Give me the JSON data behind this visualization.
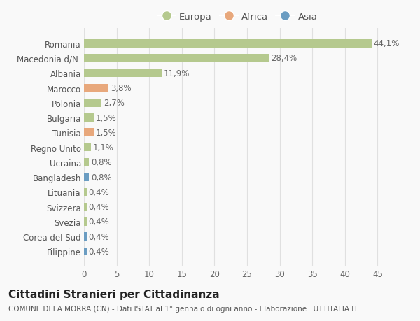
{
  "categories": [
    "Filippine",
    "Corea del Sud",
    "Svezia",
    "Svizzera",
    "Lituania",
    "Bangladesh",
    "Ucraina",
    "Regno Unito",
    "Tunisia",
    "Bulgaria",
    "Polonia",
    "Marocco",
    "Albania",
    "Macedonia d/N.",
    "Romania"
  ],
  "values": [
    0.4,
    0.4,
    0.4,
    0.4,
    0.4,
    0.8,
    0.8,
    1.1,
    1.5,
    1.5,
    2.7,
    3.8,
    11.9,
    28.4,
    44.1
  ],
  "continents": [
    "Asia",
    "Asia",
    "Europa",
    "Europa",
    "Europa",
    "Asia",
    "Europa",
    "Europa",
    "Africa",
    "Europa",
    "Europa",
    "Africa",
    "Europa",
    "Europa",
    "Europa"
  ],
  "labels": [
    "0,4%",
    "0,4%",
    "0,4%",
    "0,4%",
    "0,4%",
    "0,8%",
    "0,8%",
    "1,1%",
    "1,5%",
    "1,5%",
    "2,7%",
    "3,8%",
    "11,9%",
    "28,4%",
    "44,1%"
  ],
  "colors": {
    "Europa": "#b5c98e",
    "Africa": "#e8a87c",
    "Asia": "#6b9dc2"
  },
  "legend_labels": [
    "Europa",
    "Africa",
    "Asia"
  ],
  "xlim": [
    0,
    47
  ],
  "xticks": [
    0,
    5,
    10,
    15,
    20,
    25,
    30,
    35,
    40,
    45
  ],
  "title1": "Cittadini Stranieri per Cittadinanza",
  "title2": "COMUNE DI LA MORRA (CN) - Dati ISTAT al 1° gennaio di ogni anno - Elaborazione TUTTITALIA.IT",
  "background_color": "#f9f9f9",
  "grid_color": "#e0e0e0",
  "bar_height": 0.55,
  "label_fontsize": 8.5,
  "tick_fontsize": 8.5,
  "title1_fontsize": 11,
  "title2_fontsize": 7.5
}
